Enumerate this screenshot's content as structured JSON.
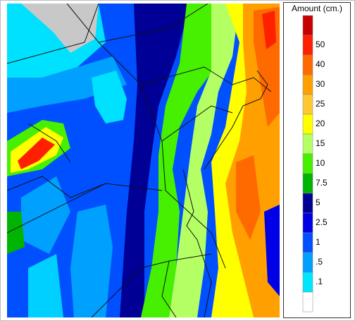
{
  "legend": {
    "title": "Amount (cm.)",
    "labels": [
      "50",
      "40",
      "30",
      "25",
      "20",
      "15",
      "10",
      "7.5",
      "5",
      "2.5",
      "1",
      ".5",
      ".1"
    ],
    "colors": [
      "#c80000",
      "#ff2000",
      "#ff6a00",
      "#ffa000",
      "#ffc830",
      "#ffff00",
      "#b4ff64",
      "#46f000",
      "#00b400",
      "#000096",
      "#0000e6",
      "#0050ff",
      "#00a0ff",
      "#00e6ff",
      "#ffffff"
    ]
  }
}
